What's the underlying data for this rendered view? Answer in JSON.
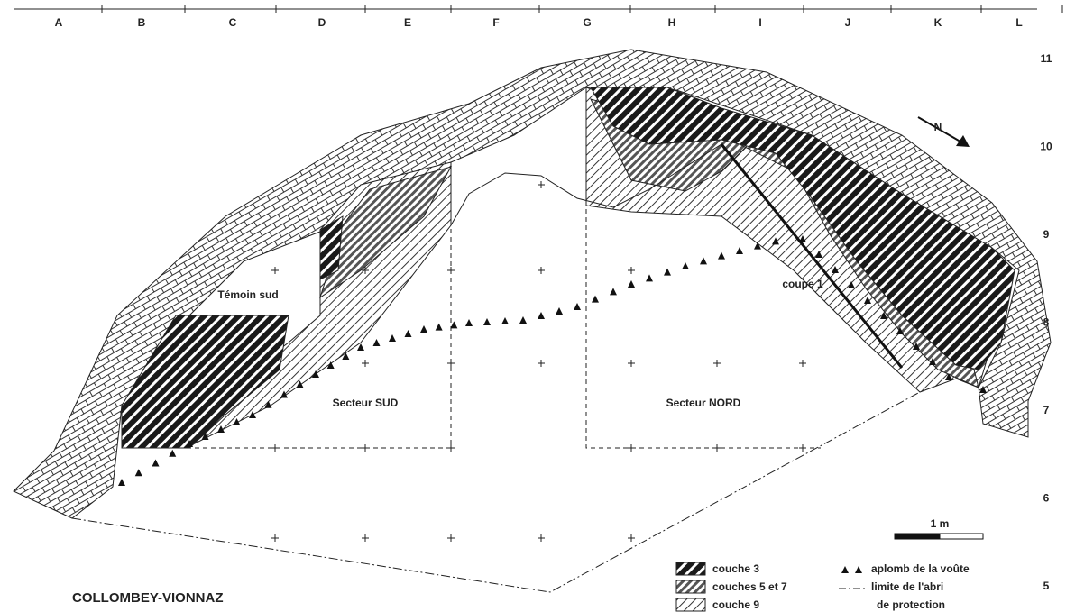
{
  "grid": {
    "columns": [
      "A",
      "B",
      "C",
      "D",
      "E",
      "F",
      "G",
      "H",
      "I",
      "J",
      "K",
      "L"
    ],
    "rows": [
      "11",
      "10",
      "9",
      "8",
      "7",
      "6",
      "5"
    ]
  },
  "labels": {
    "temoin": "Témoin sud",
    "secteur_sud": "Secteur SUD",
    "secteur_nord": "Secteur NORD",
    "coupe": "coupe 1",
    "north": "N",
    "scale": "1 m"
  },
  "legend": {
    "layers": [
      "couche 3",
      "couches 5 et 7",
      "couche 9"
    ],
    "symbols": [
      "aplomb de la voûte",
      "limite de l'abri",
      "de protection"
    ]
  },
  "title": "COLLOMBEY-VIONNAZ"
}
